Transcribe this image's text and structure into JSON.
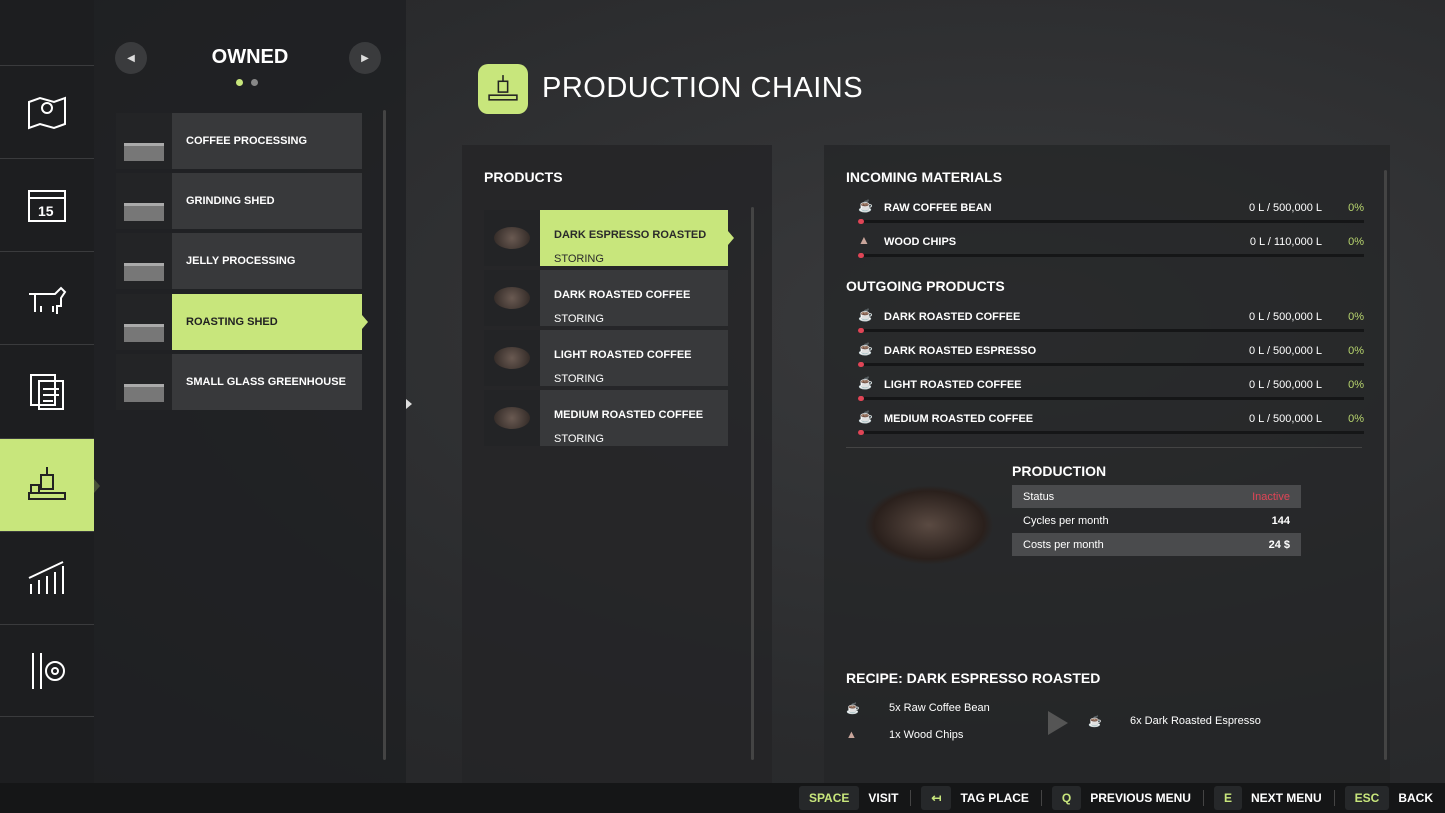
{
  "accent": "#c8e67c",
  "sidebar": {
    "items": [
      {
        "icon": "map-icon"
      },
      {
        "icon": "calendar-icon",
        "label": "15"
      },
      {
        "icon": "animals-icon"
      },
      {
        "icon": "contracts-icon"
      },
      {
        "icon": "production-icon",
        "selected": true
      },
      {
        "icon": "statistics-icon"
      },
      {
        "icon": "settings-icon"
      }
    ]
  },
  "owned": {
    "title": "OWNED",
    "page": 1,
    "pages": 2,
    "places": [
      {
        "label": "COFFEE PROCESSING"
      },
      {
        "label": "GRINDING SHED"
      },
      {
        "label": "JELLY PROCESSING"
      },
      {
        "label": "ROASTING SHED",
        "selected": true
      },
      {
        "label": "SMALL GLASS GREENHOUSE"
      }
    ]
  },
  "header": {
    "title": "PRODUCTION CHAINS"
  },
  "products": {
    "title": "PRODUCTS",
    "items": [
      {
        "name": "DARK ESPRESSO ROASTED",
        "status": "STORING",
        "selected": true
      },
      {
        "name": "DARK ROASTED COFFEE",
        "status": "STORING"
      },
      {
        "name": "LIGHT ROASTED COFFEE",
        "status": "STORING"
      },
      {
        "name": "MEDIUM ROASTED COFFEE",
        "status": "STORING"
      }
    ]
  },
  "incoming": {
    "title": "INCOMING MATERIALS",
    "items": [
      {
        "name": "RAW COFFEE BEAN",
        "amount": "0 L / 500,000 L",
        "percent": "0%"
      },
      {
        "name": "WOOD CHIPS",
        "amount": "0 L / 110,000 L",
        "percent": "0%"
      }
    ]
  },
  "outgoing": {
    "title": "OUTGOING PRODUCTS",
    "items": [
      {
        "name": "DARK ROASTED COFFEE",
        "amount": "0 L / 500,000 L",
        "percent": "0%"
      },
      {
        "name": "DARK ROASTED ESPRESSO",
        "amount": "0 L / 500,000 L",
        "percent": "0%"
      },
      {
        "name": "LIGHT ROASTED COFFEE",
        "amount": "0 L / 500,000 L",
        "percent": "0%"
      },
      {
        "name": "MEDIUM ROASTED COFFEE",
        "amount": "0 L / 500,000 L",
        "percent": "0%"
      }
    ]
  },
  "production": {
    "title": "PRODUCTION",
    "rows": [
      {
        "label": "Status",
        "value": "Inactive",
        "color": "#e04556"
      },
      {
        "label": "Cycles per month",
        "value": "144"
      },
      {
        "label": "Costs per month",
        "value": "24 $"
      }
    ]
  },
  "recipe": {
    "title": "RECIPE: DARK ESPRESSO ROASTED",
    "inputs": [
      "5x Raw Coffee Bean",
      "1x Wood Chips"
    ],
    "output": "6x Dark Roasted Espresso"
  },
  "footer": [
    {
      "key": "SPACE",
      "action": "VISIT"
    },
    {
      "key": "↤",
      "action": "TAG PLACE"
    },
    {
      "key": "Q",
      "action": "PREVIOUS MENU"
    },
    {
      "key": "E",
      "action": "NEXT MENU"
    },
    {
      "key": "ESC",
      "action": "BACK"
    }
  ]
}
